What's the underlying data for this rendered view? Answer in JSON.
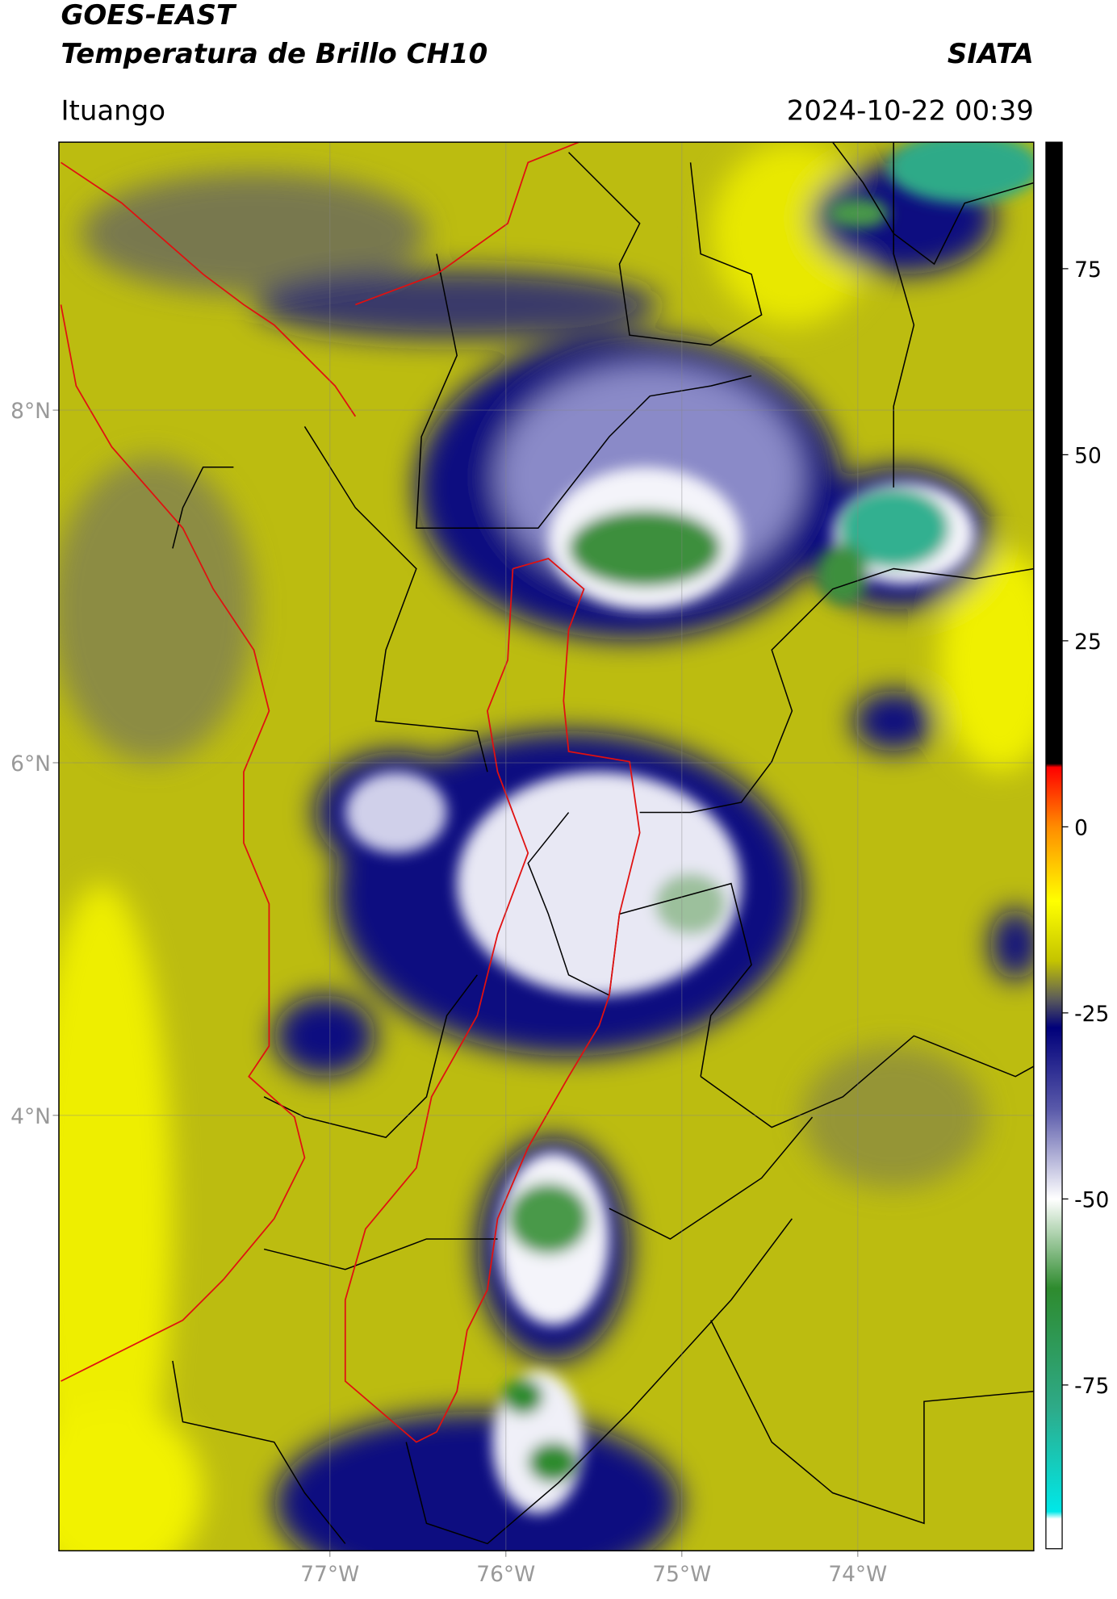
{
  "header": {
    "title_line1": "GOES-EAST",
    "title_line2": "Temperatura de Brillo CH10",
    "source": "SIATA",
    "region": "Ituango",
    "timestamp": "2024-10-22 00:39"
  },
  "map": {
    "xlim": [
      -78.54,
      -73.0
    ],
    "ylim": [
      1.53,
      9.52
    ],
    "xticks": [
      {
        "value": -77,
        "label": "77°W"
      },
      {
        "value": -76,
        "label": "76°W"
      },
      {
        "value": -75,
        "label": "75°W"
      },
      {
        "value": -74,
        "label": "74°W"
      }
    ],
    "yticks": [
      {
        "value": 8,
        "label": "8°N"
      },
      {
        "value": 6,
        "label": "6°N"
      },
      {
        "value": 4,
        "label": "4°N"
      }
    ],
    "grid": true
  },
  "colorbar": {
    "clim": [
      -97,
      92
    ],
    "ticks": [
      75,
      50,
      25,
      0,
      -25,
      -50,
      -75
    ],
    "colormap": [
      {
        "value": 92,
        "color": "#000000"
      },
      {
        "value": 8.5,
        "color": "#000000"
      },
      {
        "value": 8,
        "color": "#ff0000"
      },
      {
        "value": 0,
        "color": "#ff8c00"
      },
      {
        "value": -10,
        "color": "#ffff00"
      },
      {
        "value": -18,
        "color": "#c4c400"
      },
      {
        "value": -23,
        "color": "#5e5e58"
      },
      {
        "value": -27,
        "color": "#00007a"
      },
      {
        "value": -38,
        "color": "#5a5aaa"
      },
      {
        "value": -50,
        "color": "#ffffff"
      },
      {
        "value": -62,
        "color": "#2e8b2e"
      },
      {
        "value": -78,
        "color": "#2eaa88"
      },
      {
        "value": -92,
        "color": "#00e8e8"
      },
      {
        "value": -93,
        "color": "#ffffff"
      },
      {
        "value": -97,
        "color": "#ffffff"
      }
    ]
  }
}
